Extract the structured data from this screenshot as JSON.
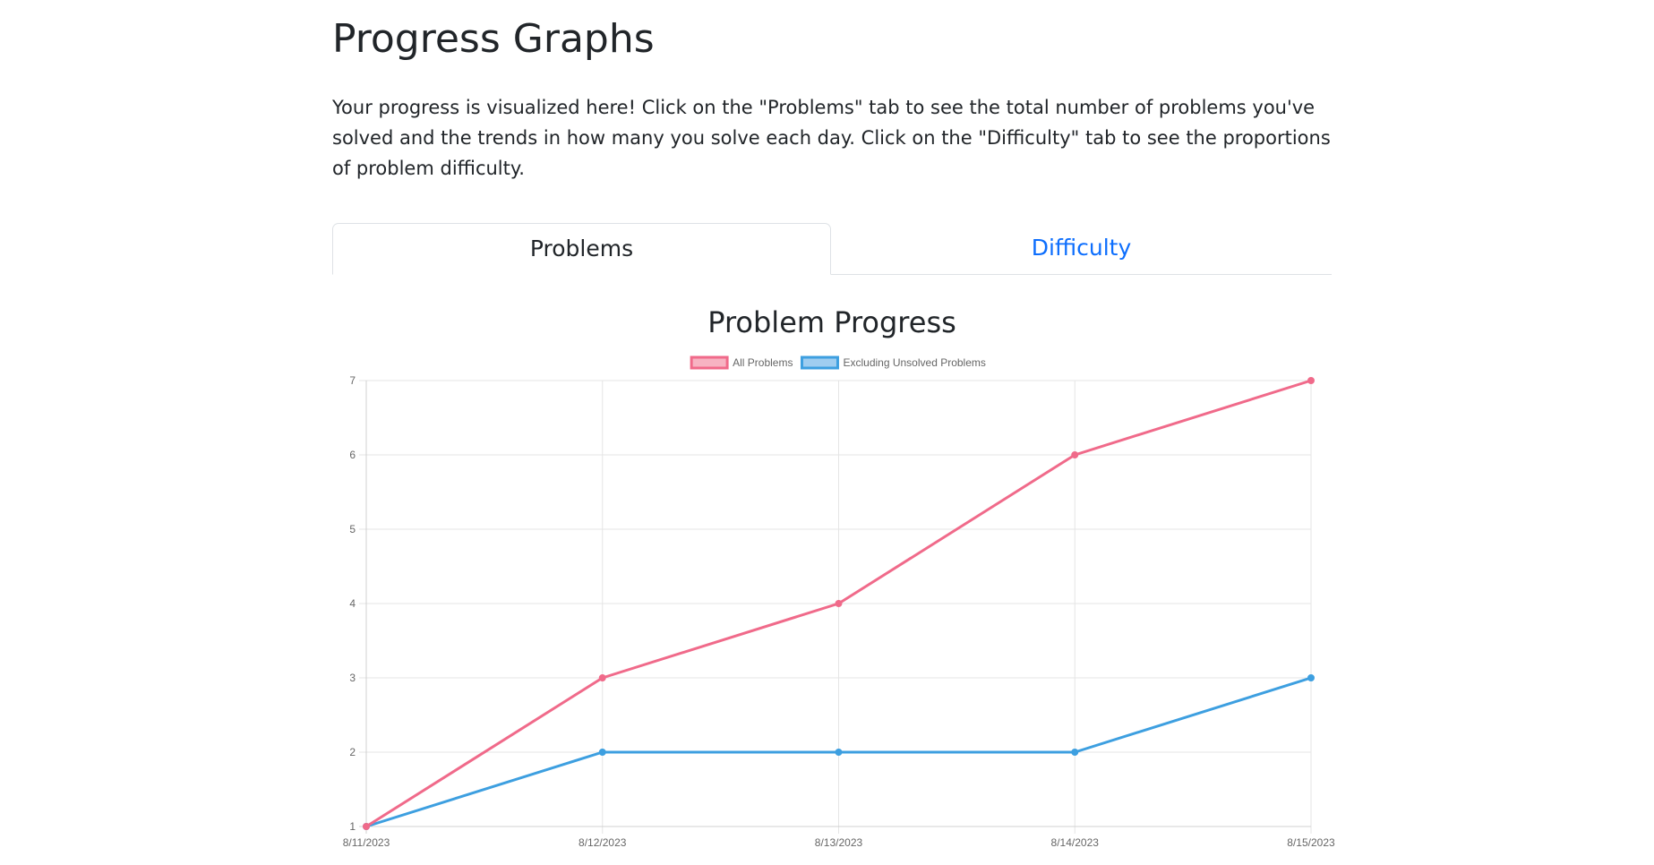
{
  "page": {
    "title": "Progress Graphs",
    "intro": "Your progress is visualized here! Click on the \"Problems\" tab to see the total number of problems you've solved and the trends in how many you solve each day. Click on the \"Difficulty\" tab to see the proportions of problem difficulty."
  },
  "tabs": [
    {
      "label": "Problems",
      "active": true
    },
    {
      "label": "Difficulty",
      "active": false
    }
  ],
  "colors": {
    "accent": "#0d6efd",
    "series_all": "#f06a8a",
    "series_excluding": "#3d9fe0"
  },
  "chart_data": {
    "type": "line",
    "title": "Problem Progress",
    "xlabel": "",
    "ylabel": "",
    "categories": [
      "8/11/2023",
      "8/12/2023",
      "8/13/2023",
      "8/14/2023",
      "8/15/2023"
    ],
    "series": [
      {
        "name": "All Problems",
        "values": [
          1,
          3,
          4,
          6,
          7
        ],
        "color": "#f06a8a",
        "fill": "#f7b3c2"
      },
      {
        "name": "Excluding Unsolved Problems",
        "values": [
          1,
          2,
          2,
          2,
          3
        ],
        "color": "#3d9fe0",
        "fill": "#9fcdf0"
      }
    ],
    "ylim": [
      1,
      7
    ],
    "yticks": [
      1,
      2,
      3,
      4,
      5,
      6,
      7
    ],
    "grid": true,
    "legend": "top-center"
  }
}
